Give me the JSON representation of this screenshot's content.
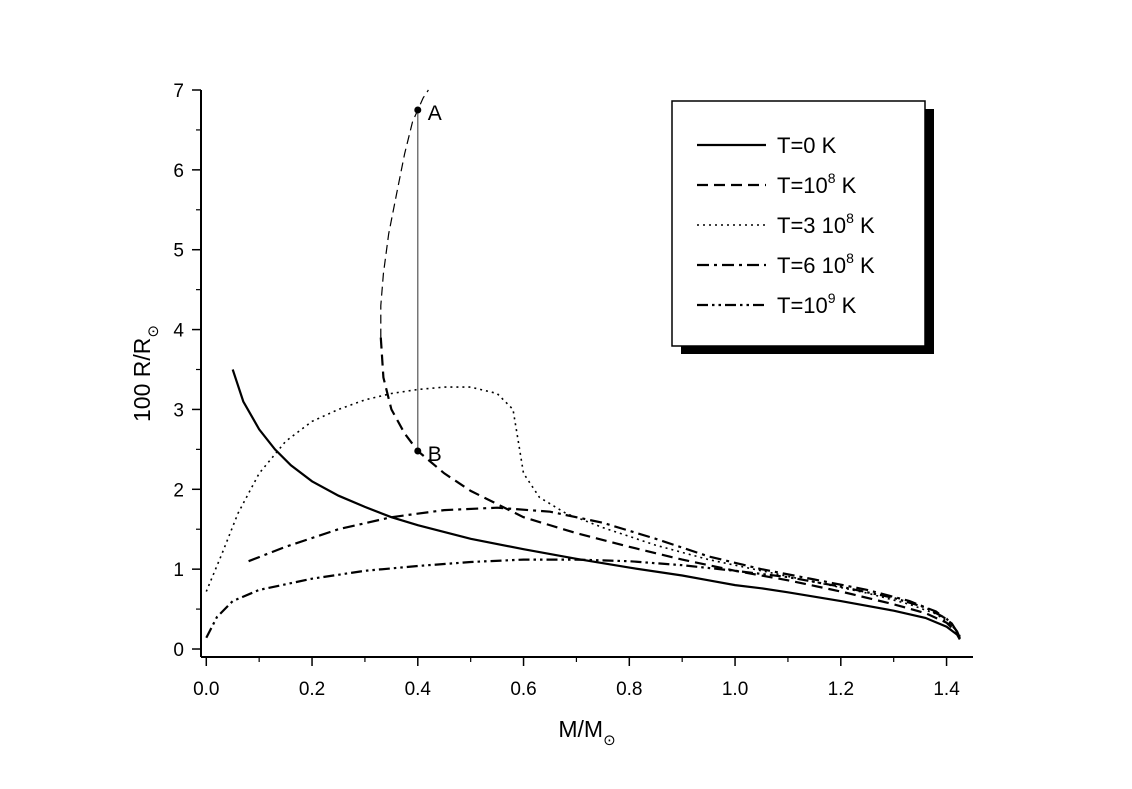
{
  "chart_data": {
    "type": "line",
    "xlabel": {
      "main": "M/M",
      "sub": "⊙"
    },
    "ylabel": {
      "main": "100 R/R",
      "sub": "⊙"
    },
    "xlim": [
      -0.01,
      1.45
    ],
    "ylim": [
      -0.1,
      7.0
    ],
    "x_ticks": [
      0.0,
      0.2,
      0.4,
      0.6,
      0.8,
      1.0,
      1.2,
      1.4
    ],
    "x_tick_labels": [
      "0.0",
      "0.2",
      "0.4",
      "0.6",
      "0.8",
      "1.0",
      "1.2",
      "1.4"
    ],
    "y_ticks": [
      0,
      1,
      2,
      3,
      4,
      5,
      6,
      7
    ],
    "y_tick_labels": [
      "0",
      "1",
      "2",
      "3",
      "4",
      "5",
      "6",
      "7"
    ],
    "grid": false,
    "legend_position": "top-right",
    "series": [
      {
        "name": "T=0 K",
        "label_parts": {
          "pre": "T=0 K",
          "sup": "",
          "post": ""
        },
        "style": "solid",
        "points": [
          [
            0.05,
            3.5
          ],
          [
            0.07,
            3.1
          ],
          [
            0.1,
            2.75
          ],
          [
            0.13,
            2.5
          ],
          [
            0.16,
            2.3
          ],
          [
            0.2,
            2.1
          ],
          [
            0.25,
            1.92
          ],
          [
            0.3,
            1.78
          ],
          [
            0.35,
            1.65
          ],
          [
            0.4,
            1.55
          ],
          [
            0.5,
            1.38
          ],
          [
            0.6,
            1.25
          ],
          [
            0.7,
            1.13
          ],
          [
            0.8,
            1.02
          ],
          [
            0.9,
            0.92
          ],
          [
            0.95,
            0.86
          ],
          [
            1.0,
            0.8
          ],
          [
            1.05,
            0.76
          ],
          [
            1.1,
            0.71
          ],
          [
            1.2,
            0.6
          ],
          [
            1.3,
            0.48
          ],
          [
            1.36,
            0.39
          ],
          [
            1.4,
            0.28
          ],
          [
            1.42,
            0.18
          ],
          [
            1.425,
            0.12
          ]
        ]
      },
      {
        "name": "T=10^8 K",
        "label_parts": {
          "pre": "T=10",
          "sup": "8",
          "post": " K"
        },
        "style": "dashed",
        "points": [
          [
            0.33,
            3.9
          ],
          [
            0.33,
            4.3
          ],
          [
            0.335,
            4.7
          ],
          [
            0.345,
            5.2
          ],
          [
            0.36,
            5.7
          ],
          [
            0.375,
            6.2
          ],
          [
            0.39,
            6.6
          ],
          [
            0.4,
            6.75
          ],
          [
            0.41,
            6.9
          ],
          [
            0.42,
            7.0
          ]
        ],
        "points_lower": [
          [
            0.33,
            3.9
          ],
          [
            0.335,
            3.4
          ],
          [
            0.35,
            3.0
          ],
          [
            0.375,
            2.7
          ],
          [
            0.4,
            2.48
          ],
          [
            0.45,
            2.2
          ],
          [
            0.5,
            1.98
          ],
          [
            0.6,
            1.65
          ],
          [
            0.7,
            1.45
          ],
          [
            0.8,
            1.28
          ],
          [
            0.9,
            1.12
          ],
          [
            1.0,
            0.98
          ],
          [
            1.1,
            0.86
          ],
          [
            1.2,
            0.72
          ],
          [
            1.3,
            0.56
          ],
          [
            1.36,
            0.45
          ],
          [
            1.4,
            0.33
          ],
          [
            1.42,
            0.2
          ],
          [
            1.425,
            0.13
          ]
        ]
      },
      {
        "name": "T=3 10^8 K",
        "label_parts": {
          "pre": "T=3 10",
          "sup": "8",
          "post": " K"
        },
        "style": "dotted",
        "points": [
          [
            0.0,
            0.72
          ],
          [
            0.03,
            1.2
          ],
          [
            0.06,
            1.7
          ],
          [
            0.1,
            2.2
          ],
          [
            0.15,
            2.6
          ],
          [
            0.2,
            2.85
          ],
          [
            0.25,
            3.0
          ],
          [
            0.3,
            3.12
          ],
          [
            0.35,
            3.2
          ],
          [
            0.4,
            3.25
          ],
          [
            0.45,
            3.28
          ],
          [
            0.5,
            3.28
          ],
          [
            0.55,
            3.2
          ],
          [
            0.58,
            3.0
          ],
          [
            0.59,
            2.6
          ],
          [
            0.6,
            2.2
          ],
          [
            0.63,
            1.9
          ],
          [
            0.68,
            1.7
          ],
          [
            0.75,
            1.52
          ],
          [
            0.85,
            1.3
          ],
          [
            0.95,
            1.12
          ],
          [
            1.05,
            0.98
          ],
          [
            1.15,
            0.84
          ],
          [
            1.25,
            0.7
          ],
          [
            1.33,
            0.56
          ],
          [
            1.38,
            0.44
          ],
          [
            1.41,
            0.3
          ],
          [
            1.425,
            0.15
          ]
        ]
      },
      {
        "name": "T=6 10^8 K",
        "label_parts": {
          "pre": "T=6 10",
          "sup": "8",
          "post": " K"
        },
        "style": "dashdot",
        "points": [
          [
            0.08,
            1.1
          ],
          [
            0.15,
            1.28
          ],
          [
            0.25,
            1.5
          ],
          [
            0.35,
            1.65
          ],
          [
            0.45,
            1.74
          ],
          [
            0.55,
            1.77
          ],
          [
            0.65,
            1.72
          ],
          [
            0.75,
            1.58
          ],
          [
            0.85,
            1.38
          ],
          [
            0.95,
            1.16
          ],
          [
            1.05,
            1.0
          ],
          [
            1.15,
            0.87
          ],
          [
            1.25,
            0.74
          ],
          [
            1.33,
            0.6
          ],
          [
            1.38,
            0.47
          ],
          [
            1.41,
            0.32
          ],
          [
            1.425,
            0.16
          ]
        ]
      },
      {
        "name": "T=10^9 K",
        "label_parts": {
          "pre": "T=10",
          "sup": "9",
          "post": " K"
        },
        "style": "dashdotdot",
        "points": [
          [
            0.0,
            0.14
          ],
          [
            0.02,
            0.4
          ],
          [
            0.05,
            0.6
          ],
          [
            0.1,
            0.74
          ],
          [
            0.2,
            0.88
          ],
          [
            0.3,
            0.98
          ],
          [
            0.4,
            1.04
          ],
          [
            0.5,
            1.09
          ],
          [
            0.6,
            1.12
          ],
          [
            0.7,
            1.12
          ],
          [
            0.8,
            1.1
          ],
          [
            0.9,
            1.05
          ],
          [
            1.0,
            0.98
          ],
          [
            1.1,
            0.9
          ],
          [
            1.2,
            0.78
          ],
          [
            1.3,
            0.64
          ],
          [
            1.36,
            0.52
          ],
          [
            1.4,
            0.38
          ],
          [
            1.42,
            0.22
          ],
          [
            1.425,
            0.14
          ]
        ]
      }
    ],
    "annotations": [
      {
        "label": "A",
        "x": 0.4,
        "y": 6.75
      },
      {
        "label": "B",
        "x": 0.4,
        "y": 2.48
      }
    ]
  }
}
